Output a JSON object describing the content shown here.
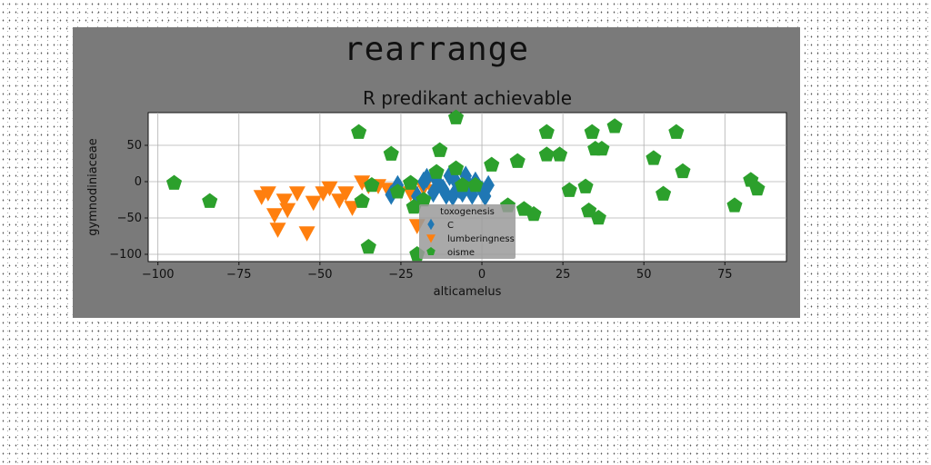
{
  "figure": {
    "suptitle": "rearrange"
  },
  "chart_data": {
    "type": "scatter",
    "title": "R predikant achievable",
    "xlabel": "alticamelus",
    "ylabel": "gymnodiniaceae",
    "xlim": [
      -103,
      94
    ],
    "ylim": [
      -110,
      95
    ],
    "xticks": [
      -100,
      -75,
      -50,
      -25,
      0,
      25,
      50,
      75
    ],
    "xtick_labels": [
      "−100",
      "−75",
      "−50",
      "−25",
      "0",
      "25",
      "50",
      "75"
    ],
    "yticks": [
      -100,
      -50,
      0,
      50
    ],
    "ytick_labels": [
      "−100",
      "−50",
      "0",
      "50"
    ],
    "grid": true,
    "legend": {
      "title": "toxogenesis",
      "location": "center"
    },
    "series": [
      {
        "name": "C",
        "color": "#1f77b4",
        "marker": "diamond",
        "x": [
          -28,
          -26,
          -20,
          -18,
          -17,
          -15,
          -14,
          -12,
          -11,
          -10,
          -9,
          -8,
          -7,
          -6,
          -5,
          -4,
          -3,
          -2,
          0,
          1,
          2
        ],
        "y": [
          -18,
          -5,
          -20,
          0,
          5,
          -15,
          2,
          -10,
          -18,
          8,
          -20,
          0,
          -10,
          -15,
          8,
          -5,
          -18,
          0,
          -12,
          -20,
          -5
        ]
      },
      {
        "name": "lumberingness",
        "color": "#ff7f0e",
        "marker": "triangle-down",
        "x": [
          -68,
          -66,
          -64,
          -63,
          -61,
          -60,
          -57,
          -54,
          -52,
          -49,
          -47,
          -44,
          -42,
          -40,
          -37,
          -35,
          -32,
          -29,
          -22,
          -20,
          -18,
          -15
        ],
        "y": [
          -20,
          -15,
          -45,
          -65,
          -25,
          -38,
          -15,
          -70,
          -28,
          -15,
          -8,
          -25,
          -15,
          -35,
          0,
          -5,
          -5,
          -10,
          -15,
          -60,
          -8,
          -12
        ]
      },
      {
        "name": "oisme",
        "color": "#2ca02c",
        "marker": "pentagon",
        "x": [
          -95,
          -84,
          -38,
          -37,
          -35,
          -34,
          -28,
          -26,
          -22,
          -21,
          -20,
          -18,
          -14,
          -13,
          -8,
          -8,
          -6,
          -2,
          3,
          8,
          11,
          13,
          16,
          20,
          20,
          24,
          27,
          32,
          33,
          34,
          35,
          36,
          37,
          41,
          53,
          56,
          60,
          62,
          78,
          83,
          85
        ],
        "y": [
          -2,
          -27,
          68,
          -27,
          -90,
          -5,
          38,
          -14,
          -2,
          -35,
          -100,
          -25,
          13,
          43,
          88,
          18,
          -5,
          -5,
          23,
          -33,
          28,
          -38,
          -45,
          68,
          37,
          37,
          -12,
          -7,
          -40,
          68,
          45,
          -50,
          45,
          76,
          32,
          -17,
          68,
          14,
          -33,
          2,
          -10
        ]
      }
    ]
  }
}
